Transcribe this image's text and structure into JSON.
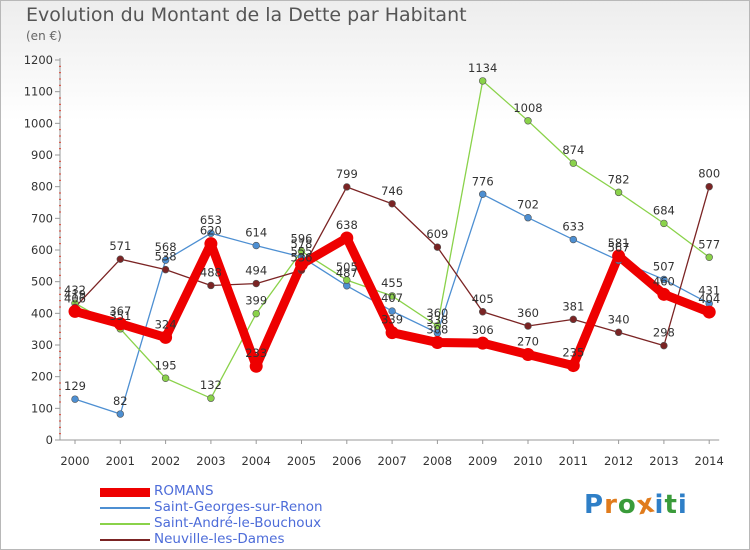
{
  "title": "Evolution du Montant de la Dette par Habitant",
  "unit_label": "(en €)",
  "logo_text": "Proxiti",
  "chart_data": {
    "type": "line",
    "title": "Evolution du Montant de la Dette par Habitant",
    "subtitle": "(en €)",
    "xlabel": "",
    "ylabel": "",
    "ylim": [
      0,
      1200
    ],
    "yticks": [
      0,
      100,
      200,
      300,
      400,
      500,
      600,
      700,
      800,
      900,
      1000,
      1100,
      1200
    ],
    "grid": false,
    "legend_position": "bottom-left",
    "x": [
      "2000",
      "2001",
      "2002",
      "2003",
      "2004",
      "2005",
      "2006",
      "2007",
      "2008",
      "2009",
      "2010",
      "2011",
      "2012",
      "2013",
      "2014"
    ],
    "series": [
      {
        "name": "ROMANS",
        "color": "#ee0000",
        "values": [
          406,
          367,
          324,
          620,
          233,
          555,
          638,
          339,
          308,
          306,
          270,
          235,
          581,
          460,
          404
        ]
      },
      {
        "name": "Saint-Georges-sur-Renon",
        "color": "#4d8fd2",
        "values": [
          129,
          82,
          568,
          653,
          614,
          578,
          487,
          407,
          338,
          776,
          702,
          633,
          567,
          507,
          431
        ]
      },
      {
        "name": "Saint-André-le-Bouchoux",
        "color": "#8ad24a",
        "values": [
          432,
          351,
          195,
          132,
          399,
          596,
          505,
          455,
          360,
          1134,
          1008,
          874,
          782,
          684,
          577
        ]
      },
      {
        "name": "Neuville-les-Dames",
        "color": "#7b2424",
        "values": [
          419,
          571,
          538,
          488,
          494,
          536,
          799,
          746,
          609,
          405,
          360,
          381,
          340,
          298,
          800
        ]
      }
    ]
  }
}
